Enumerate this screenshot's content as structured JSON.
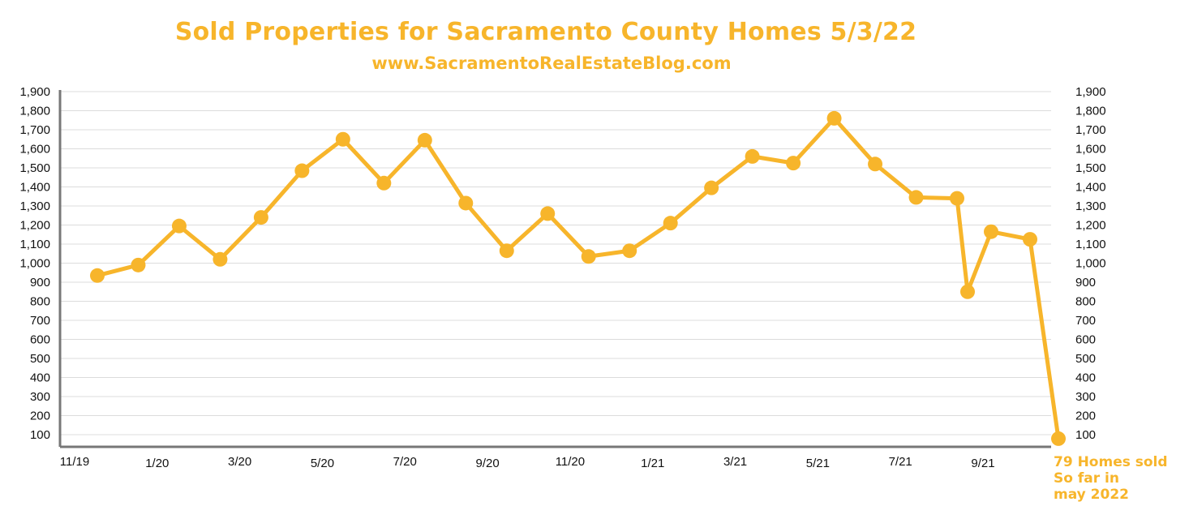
{
  "chart_data": {
    "type": "line",
    "title": "Sold Properties for Sacramento County Homes 5/3/22",
    "subtitle": "www.SacramentoRealEstateBlog.com",
    "xlabel": "",
    "ylabel": "",
    "ylim": [
      0,
      1900
    ],
    "y_ticks": [
      "1,900",
      "1,800",
      "1,700",
      "1,600",
      "1,500",
      "1,400",
      "1,300",
      "1,200",
      "1,100",
      "1,000",
      "900",
      "800",
      "700",
      "600",
      "500",
      "400",
      "300",
      "200",
      "100"
    ],
    "x_tick_labels": [
      "11/19",
      "1/20",
      "3/20",
      "5/20",
      "7/20",
      "9/20",
      "11/20",
      "1/21",
      "3/21",
      "5/21",
      "7/21",
      "9/21"
    ],
    "grid": true,
    "color": "#f7b52b",
    "values": [
      935,
      990,
      1195,
      1020,
      1240,
      1485,
      1650,
      1420,
      1645,
      1315,
      1065,
      1260,
      1035,
      1065,
      1210,
      1395,
      1560,
      1525,
      1760,
      1520,
      1345,
      1340,
      850,
      1165,
      1125,
      79
    ],
    "annotation": "79 Homes sold\nSo  far in\nmay 2022"
  }
}
